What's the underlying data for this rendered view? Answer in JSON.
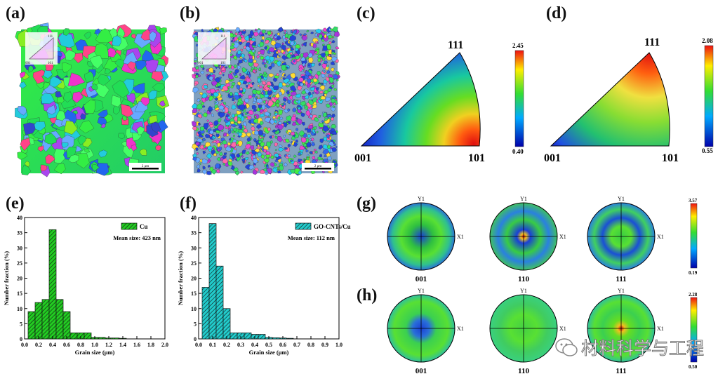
{
  "panels": {
    "a": "(a)",
    "b": "(b)",
    "c": "(c)",
    "d": "(d)",
    "e": "(e)",
    "f": "(f)",
    "g": "(g)",
    "h": "(h)"
  },
  "ebsd_maps": {
    "scale_bar_label": "2 μm",
    "ipf_key_labels": {
      "top": "111",
      "left": "001",
      "right": "101"
    }
  },
  "ipf_c": {
    "labels": {
      "top": "111",
      "left": "001",
      "right": "101"
    },
    "colorbar": {
      "max": "2.45",
      "min": "0.40"
    }
  },
  "ipf_d": {
    "labels": {
      "top": "111",
      "left": "001",
      "right": "101"
    },
    "colorbar": {
      "max": "2.08",
      "min": "0.55"
    }
  },
  "pole_figures": {
    "axis_y": "Y1",
    "axis_x": "X1",
    "names": [
      "001",
      "110",
      "111"
    ],
    "g_colorbar": {
      "max": "3.57",
      "min": "0.19"
    },
    "h_colorbar": {
      "max": "2.28",
      "min": "0.50"
    }
  },
  "watermark": {
    "text": "材料科学与工程"
  },
  "chart_data": [
    {
      "type": "bar",
      "panel": "e",
      "legend": "Cu",
      "annotation": "Mean size: 423 nm",
      "xlabel": "Grain size (μm)",
      "ylabel": "Number fraction (%)",
      "xlim": [
        0.0,
        2.0
      ],
      "ylim": [
        0,
        40
      ],
      "xticks": [
        "0.0",
        "0.2",
        "0.4",
        "0.6",
        "0.8",
        "1.0",
        "1.2",
        "1.4",
        "1.6",
        "1.8",
        "2.0"
      ],
      "yticks": [
        "0",
        "5",
        "10",
        "15",
        "20",
        "25",
        "30",
        "35",
        "40"
      ],
      "bin_width": 0.1,
      "x": [
        0.1,
        0.2,
        0.3,
        0.4,
        0.5,
        0.6,
        0.7,
        0.8,
        0.9,
        1.0,
        1.1,
        1.2,
        1.3,
        1.4
      ],
      "values": [
        9,
        12,
        13,
        36,
        13,
        9,
        2,
        2,
        2,
        0.5,
        0.5,
        0.3,
        0.3,
        0.2
      ],
      "color": "#22cc22"
    },
    {
      "type": "bar",
      "panel": "f",
      "legend": "GO-CNTs/Cu",
      "annotation": "Mean size: 112 nm",
      "xlabel": "Grain size (μm)",
      "ylabel": "Number fraction (%)",
      "xlim": [
        0.0,
        1.0
      ],
      "ylim": [
        0,
        40
      ],
      "xticks": [
        "0.0",
        "0.1",
        "0.2",
        "0.3",
        "0.4",
        "0.5",
        "0.6",
        "0.7",
        "0.8",
        "0.9",
        "1.0"
      ],
      "yticks": [
        "0",
        "5",
        "10",
        "15",
        "20",
        "25",
        "30",
        "35",
        "40"
      ],
      "bin_width": 0.05,
      "x": [
        0.05,
        0.1,
        0.15,
        0.2,
        0.25,
        0.3,
        0.35,
        0.4,
        0.45,
        0.5,
        0.55,
        0.6,
        0.65
      ],
      "values": [
        17,
        38,
        24,
        10,
        2,
        2,
        2,
        1.5,
        1.5,
        0.5,
        0.4,
        0.3,
        0.2
      ],
      "color": "#22cccc"
    }
  ]
}
